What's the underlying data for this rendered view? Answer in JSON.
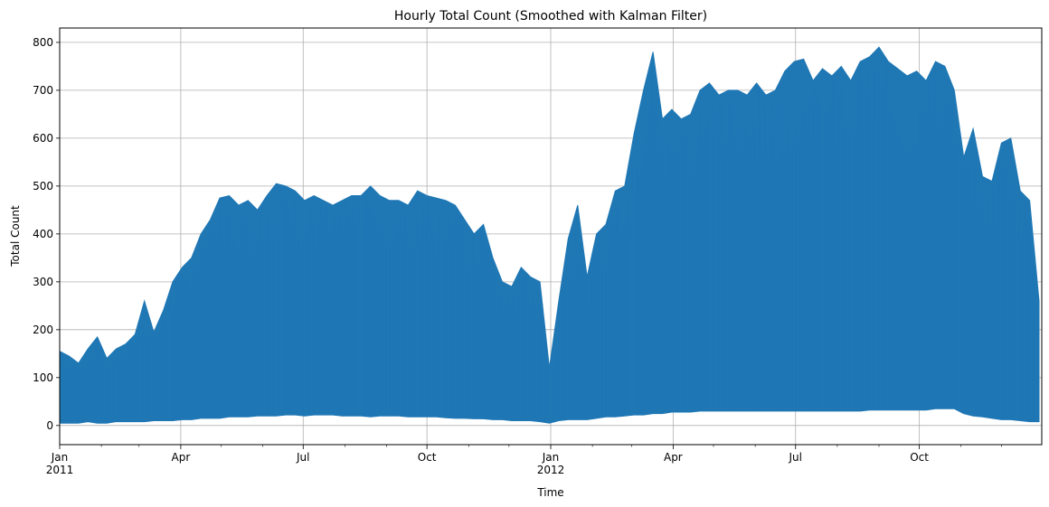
{
  "chart_data": {
    "type": "line",
    "title": "Hourly Total Count (Smoothed with Kalman Filter)",
    "xlabel": "Time",
    "ylabel": "Total Count",
    "xlim": [
      "2011-01-01",
      "2012-12-31"
    ],
    "ylim": [
      -40,
      830
    ],
    "grid": true,
    "legend": "none",
    "colors": {
      "line": "#1f77b4",
      "grid": "#b0b0b0",
      "axis": "#000000"
    },
    "y_ticks": [
      0,
      100,
      200,
      300,
      400,
      500,
      600,
      700,
      800
    ],
    "x_major_ticks": [
      {
        "date": "2011-01-01",
        "label": "Jan",
        "year": "2011"
      },
      {
        "date": "2011-04-01",
        "label": "Apr",
        "year": ""
      },
      {
        "date": "2011-07-01",
        "label": "Jul",
        "year": ""
      },
      {
        "date": "2011-10-01",
        "label": "Oct",
        "year": ""
      },
      {
        "date": "2012-01-01",
        "label": "Jan",
        "year": "2012"
      },
      {
        "date": "2012-04-01",
        "label": "Apr",
        "year": ""
      },
      {
        "date": "2012-07-01",
        "label": "Jul",
        "year": ""
      },
      {
        "date": "2012-10-01",
        "label": "Oct",
        "year": ""
      }
    ],
    "x_minor_ticks": [
      "2011-02-01",
      "2011-03-01",
      "2011-05-01",
      "2011-06-01",
      "2011-08-01",
      "2011-09-01",
      "2011-11-01",
      "2011-12-01",
      "2012-02-01",
      "2012-03-01",
      "2012-05-01",
      "2012-06-01",
      "2012-08-01",
      "2012-09-01",
      "2012-11-01",
      "2012-12-01"
    ],
    "series": [
      {
        "resolution": "weekly",
        "dates": [
          "2011-01-01",
          "2011-01-08",
          "2011-01-15",
          "2011-01-22",
          "2011-01-29",
          "2011-02-05",
          "2011-02-12",
          "2011-02-19",
          "2011-02-26",
          "2011-03-05",
          "2011-03-12",
          "2011-03-19",
          "2011-03-26",
          "2011-04-02",
          "2011-04-09",
          "2011-04-16",
          "2011-04-23",
          "2011-04-30",
          "2011-05-07",
          "2011-05-14",
          "2011-05-21",
          "2011-05-28",
          "2011-06-04",
          "2011-06-11",
          "2011-06-18",
          "2011-06-25",
          "2011-07-02",
          "2011-07-09",
          "2011-07-16",
          "2011-07-23",
          "2011-07-30",
          "2011-08-06",
          "2011-08-13",
          "2011-08-20",
          "2011-08-27",
          "2011-09-03",
          "2011-09-10",
          "2011-09-17",
          "2011-09-24",
          "2011-10-01",
          "2011-10-08",
          "2011-10-15",
          "2011-10-22",
          "2011-10-29",
          "2011-11-05",
          "2011-11-12",
          "2011-11-19",
          "2011-11-26",
          "2011-12-03",
          "2011-12-10",
          "2011-12-17",
          "2011-12-24",
          "2011-12-31",
          "2012-01-07",
          "2012-01-14",
          "2012-01-21",
          "2012-01-28",
          "2012-02-04",
          "2012-02-11",
          "2012-02-18",
          "2012-02-25",
          "2012-03-03",
          "2012-03-10",
          "2012-03-17",
          "2012-03-24",
          "2012-03-31",
          "2012-04-07",
          "2012-04-14",
          "2012-04-21",
          "2012-04-28",
          "2012-05-05",
          "2012-05-12",
          "2012-05-19",
          "2012-05-26",
          "2012-06-02",
          "2012-06-09",
          "2012-06-16",
          "2012-06-23",
          "2012-06-30",
          "2012-07-07",
          "2012-07-14",
          "2012-07-21",
          "2012-07-28",
          "2012-08-04",
          "2012-08-11",
          "2012-08-18",
          "2012-08-25",
          "2012-09-01",
          "2012-09-08",
          "2012-09-15",
          "2012-09-22",
          "2012-09-29",
          "2012-10-06",
          "2012-10-13",
          "2012-10-20",
          "2012-10-27",
          "2012-11-03",
          "2012-11-10",
          "2012-11-17",
          "2012-11-24",
          "2012-12-01",
          "2012-12-08",
          "2012-12-15",
          "2012-12-22",
          "2012-12-29"
        ],
        "max": [
          155,
          145,
          130,
          160,
          185,
          140,
          160,
          170,
          190,
          260,
          195,
          240,
          300,
          330,
          350,
          400,
          430,
          475,
          480,
          460,
          470,
          450,
          480,
          505,
          500,
          490,
          470,
          480,
          470,
          460,
          470,
          480,
          480,
          500,
          480,
          470,
          470,
          460,
          490,
          480,
          475,
          470,
          460,
          430,
          400,
          420,
          350,
          300,
          290,
          330,
          310,
          300,
          120,
          260,
          390,
          460,
          310,
          400,
          420,
          490,
          500,
          610,
          700,
          780,
          640,
          660,
          640,
          650,
          700,
          715,
          690,
          700,
          700,
          690,
          715,
          690,
          700,
          740,
          760,
          765,
          720,
          745,
          730,
          750,
          720,
          760,
          770,
          790,
          760,
          745,
          730,
          740,
          720,
          760,
          750,
          700,
          560,
          620,
          520,
          510,
          590,
          600,
          490,
          470,
          260
        ],
        "min": [
          5,
          5,
          5,
          8,
          5,
          5,
          8,
          8,
          8,
          8,
          10,
          10,
          10,
          12,
          12,
          15,
          15,
          15,
          18,
          18,
          18,
          20,
          20,
          20,
          22,
          22,
          20,
          22,
          22,
          22,
          20,
          20,
          20,
          18,
          20,
          20,
          20,
          18,
          18,
          18,
          18,
          16,
          15,
          15,
          14,
          14,
          12,
          12,
          10,
          10,
          10,
          8,
          5,
          10,
          12,
          12,
          12,
          15,
          18,
          18,
          20,
          22,
          22,
          25,
          25,
          28,
          28,
          28,
          30,
          30,
          30,
          30,
          30,
          30,
          30,
          30,
          30,
          30,
          30,
          30,
          30,
          30,
          30,
          30,
          30,
          30,
          32,
          32,
          32,
          32,
          32,
          32,
          32,
          35,
          35,
          35,
          25,
          20,
          18,
          15,
          12,
          12,
          10,
          8,
          8
        ]
      }
    ]
  }
}
